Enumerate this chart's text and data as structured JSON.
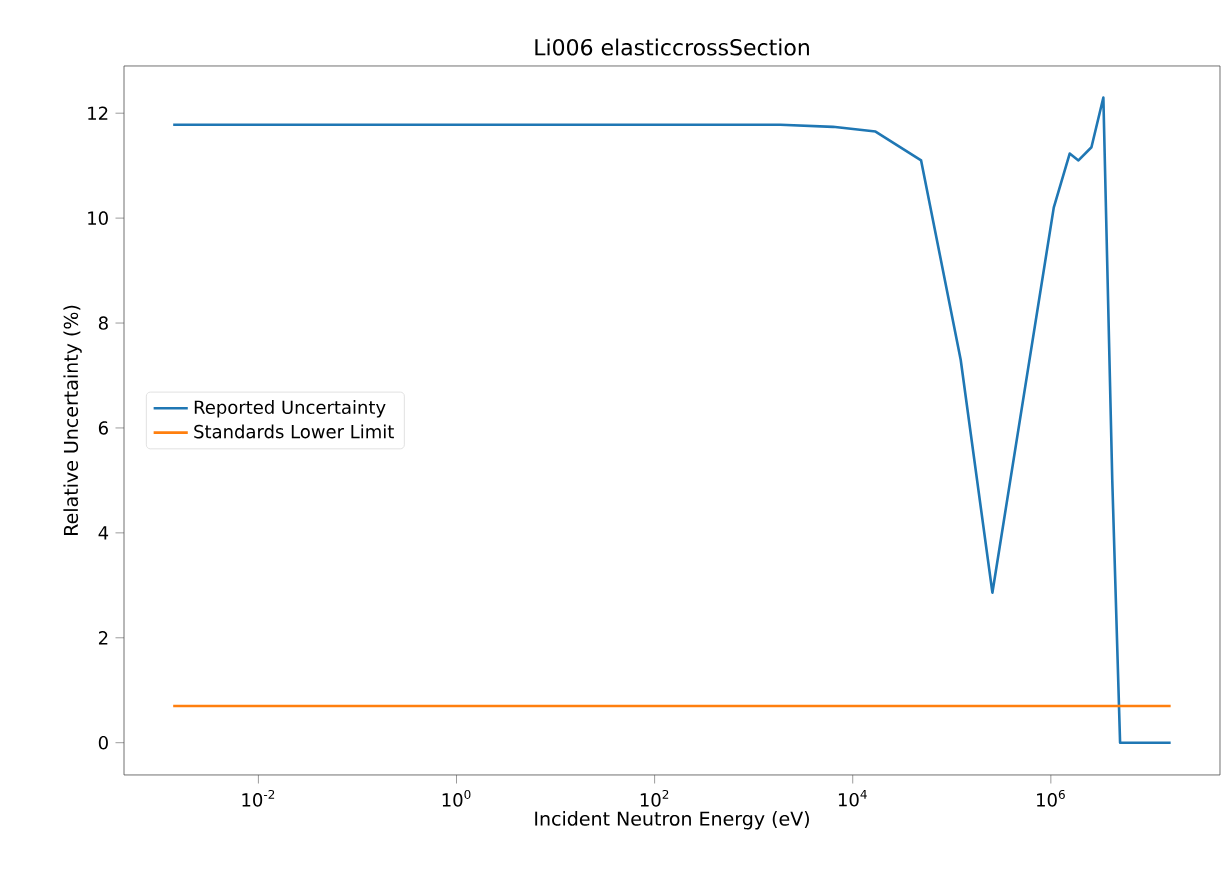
{
  "chart_data": {
    "type": "line",
    "title": "Li006 elasticcrossSection",
    "xlabel": "Incident Neutron Energy (eV)",
    "ylabel": "Relative Uncertainty (%)",
    "log": "x",
    "xlim": [
      0.00044,
      51000000
    ],
    "ylim": [
      -0.615,
      12.9
    ],
    "xticks": [
      {
        "value": 0.01,
        "label": "10$^{-2}$"
      },
      {
        "value": 1,
        "label": "10$^{0}$"
      },
      {
        "value": 100,
        "label": "10$^{2}$"
      },
      {
        "value": 10000,
        "label": "10$^{4}$"
      },
      {
        "value": 1000000,
        "label": "10$^{6}$"
      }
    ],
    "yticks": [
      0,
      2,
      4,
      6,
      8,
      10,
      12
    ],
    "legend": "left",
    "grid": false,
    "series": [
      {
        "name": "Reported Uncertainty",
        "color": "#1f77b4",
        "x": [
          0.00138,
          1862,
          6310,
          17000,
          49000,
          123000,
          257000,
          1070000,
          1550000,
          1900000,
          2570000,
          3390000,
          4170000,
          5000000,
          16200000
        ],
        "values": [
          11.78,
          11.78,
          11.74,
          11.65,
          11.1,
          7.3,
          2.86,
          10.2,
          11.23,
          11.1,
          11.35,
          12.3,
          5.0,
          0,
          0
        ]
      },
      {
        "name": "Standards Lower Limit",
        "color": "#ff7f0e",
        "x": [
          0.00138,
          16200000
        ],
        "values": [
          0.7,
          0.7
        ]
      }
    ]
  }
}
